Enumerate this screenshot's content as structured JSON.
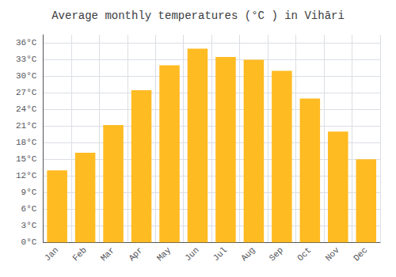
{
  "chart_data": {
    "type": "bar",
    "title": "Average monthly temperatures (°C ) in Vihāri",
    "categories": [
      "Jan",
      "Feb",
      "Mar",
      "Apr",
      "May",
      "Jun",
      "Jul",
      "Aug",
      "Sep",
      "Oct",
      "Nov",
      "Dec"
    ],
    "values": [
      13.0,
      16.2,
      21.2,
      27.5,
      32.0,
      35.0,
      33.5,
      33.0,
      31.0,
      26.0,
      20.0,
      15.0
    ],
    "color": "#FFBB22",
    "ylim": [
      0,
      37.5
    ],
    "yticks": [
      {
        "value": 0,
        "label": "0°C"
      },
      {
        "value": 3,
        "label": "3°C"
      },
      {
        "value": 6,
        "label": "6°C"
      },
      {
        "value": 9,
        "label": "9°C"
      },
      {
        "value": 12,
        "label": "12°C"
      },
      {
        "value": 15,
        "label": "15°C"
      },
      {
        "value": 18,
        "label": "18°C"
      },
      {
        "value": 21,
        "label": "21°C"
      },
      {
        "value": 24,
        "label": "24°C"
      },
      {
        "value": 27,
        "label": "27°C"
      },
      {
        "value": 30,
        "label": "30°C"
      },
      {
        "value": 33,
        "label": "33°C"
      },
      {
        "value": 36,
        "label": "36°C"
      }
    ],
    "grid": true
  }
}
